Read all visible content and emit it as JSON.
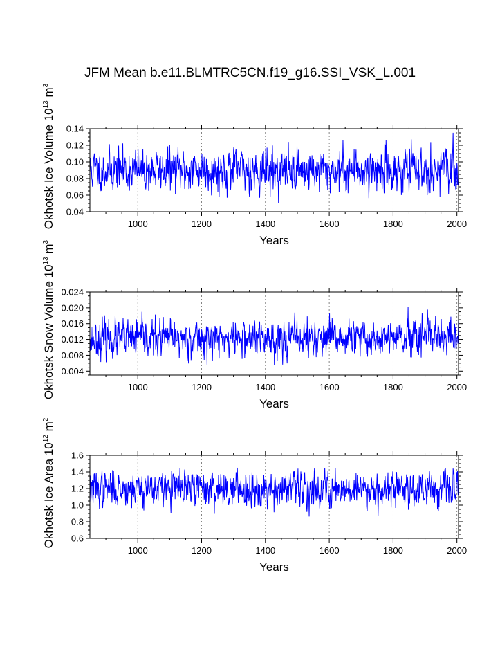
{
  "title": "JFM Mean b.e11.BLMTRC5CN.f19_g16.SSI_VSK_L.001",
  "chart_data": [
    {
      "type": "line",
      "xlabel": "Years",
      "ylabel": {
        "text": "Okhotsk Ice Volume 10",
        "exp": "13",
        "unit": " m",
        "unit_exp": "3"
      },
      "xlim": [
        850,
        2005
      ],
      "ylim": [
        0.04,
        0.14
      ],
      "xticks": [
        "1000",
        "1200",
        "1400",
        "1600",
        "1800",
        "2000"
      ],
      "yticks": [
        "0.04",
        "0.06",
        "0.08",
        "0.10",
        "0.12",
        "0.14"
      ],
      "grid": "vertical dotted at major x ticks",
      "color": "#0000ff",
      "series": {
        "start": 850,
        "end": 2005,
        "mean": 0.09,
        "spread": 0.012,
        "clip": [
          0.04,
          0.138
        ],
        "seed": 11
      }
    },
    {
      "type": "line",
      "xlabel": "Years",
      "ylabel": {
        "text": "Okhotsk Snow Volume 10",
        "exp": "13",
        "unit": " m",
        "unit_exp": "3"
      },
      "xlim": [
        850,
        2005
      ],
      "ylim": [
        0.003,
        0.024
      ],
      "xticks": [
        "1000",
        "1200",
        "1400",
        "1600",
        "1800",
        "2000"
      ],
      "yticks": [
        "0.004",
        "0.008",
        "0.012",
        "0.016",
        "0.020",
        "0.024"
      ],
      "grid": "vertical dotted at major x ticks",
      "color": "#0000ff",
      "series": {
        "start": 850,
        "end": 2005,
        "mean": 0.0122,
        "spread": 0.0022,
        "clip": [
          0.004,
          0.0218
        ],
        "seed": 23
      }
    },
    {
      "type": "line",
      "xlabel": "Years",
      "ylabel": {
        "text": "Okhotsk Ice Area 10",
        "exp": "12",
        "unit": " m",
        "unit_exp": "2"
      },
      "xlim": [
        850,
        2005
      ],
      "ylim": [
        0.6,
        1.6
      ],
      "xticks": [
        "1000",
        "1200",
        "1400",
        "1600",
        "1800",
        "2000"
      ],
      "yticks": [
        "0.6",
        "0.8",
        "1.0",
        "1.2",
        "1.4",
        "1.6"
      ],
      "grid": "vertical dotted at major x ticks",
      "color": "#0000ff",
      "series": {
        "start": 850,
        "end": 2005,
        "mean": 1.2,
        "spread": 0.1,
        "clip": [
          0.77,
          1.45
        ],
        "seed": 37
      }
    }
  ]
}
